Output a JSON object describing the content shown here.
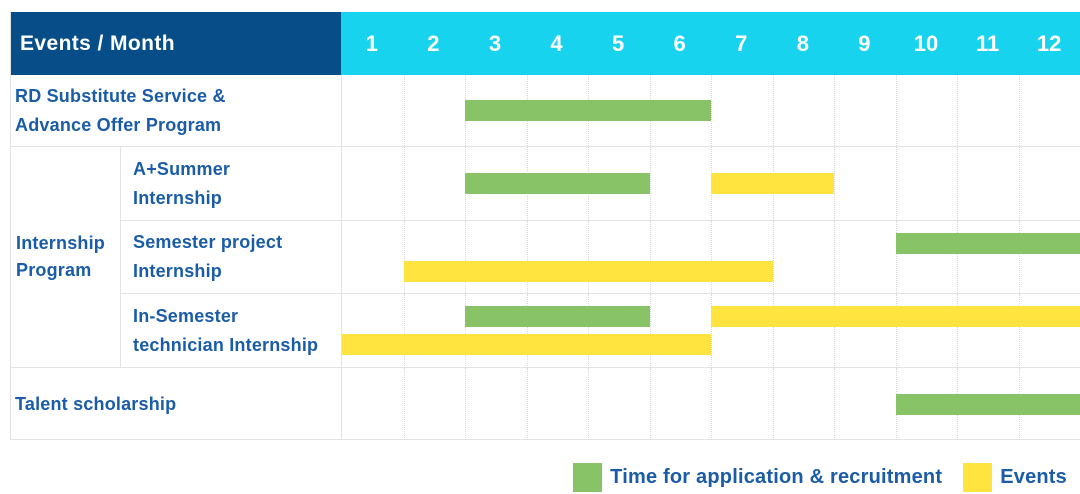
{
  "header": {
    "title": "Events / Month"
  },
  "legend": {
    "items": [
      {
        "color": "green",
        "label": "Time for application & recruitment"
      },
      {
        "color": "yellow",
        "label": "Events"
      }
    ]
  },
  "colors": {
    "navy": "#074E88",
    "cyan": "#18D3EE",
    "green": "#89C368",
    "yellow": "#FFE33E",
    "label_blue": "#1A5CA8",
    "grid_line": "#E3E3E3",
    "grid_dotted": "#D8D8D8"
  },
  "chart_data": {
    "type": "gantt",
    "title": "Events / Month",
    "months": [
      "1",
      "2",
      "3",
      "4",
      "5",
      "6",
      "7",
      "8",
      "9",
      "10",
      "11",
      "12"
    ],
    "x_range": [
      1,
      12
    ],
    "legend": {
      "green": "Time for application & recruitment",
      "yellow": "Events"
    },
    "sections": [
      {
        "kind": "row",
        "label_lines": [
          "RD Substitute Service &",
          "Advance Offer Program"
        ],
        "bars": [
          {
            "color": "green",
            "start": 3,
            "end": 6,
            "lane": "center"
          }
        ]
      },
      {
        "kind": "group",
        "label_lines": [
          "Internship",
          "Program"
        ],
        "rows": [
          {
            "label_lines": [
              "A+Summer",
              "Internship"
            ],
            "bars": [
              {
                "color": "green",
                "start": 3,
                "end": 5,
                "lane": "center"
              },
              {
                "color": "yellow",
                "start": 7,
                "end": 8,
                "lane": "center"
              }
            ]
          },
          {
            "label_lines": [
              "Semester project",
              "Internship"
            ],
            "bars": [
              {
                "color": "green",
                "start": 10,
                "end": 12,
                "lane": "upper"
              },
              {
                "color": "yellow",
                "start": 2,
                "end": 7,
                "lane": "lower"
              }
            ]
          },
          {
            "label_lines": [
              "In-Semester",
              "technician Internship"
            ],
            "bars": [
              {
                "color": "green",
                "start": 3,
                "end": 5,
                "lane": "upper"
              },
              {
                "color": "yellow",
                "start": 7,
                "end": 12,
                "lane": "upper"
              },
              {
                "color": "yellow",
                "start": 1,
                "end": 6,
                "lane": "lower"
              }
            ]
          }
        ]
      },
      {
        "kind": "row",
        "label_lines": [
          "Talent scholarship"
        ],
        "bars": [
          {
            "color": "green",
            "start": 10,
            "end": 12,
            "lane": "center"
          }
        ]
      }
    ]
  }
}
